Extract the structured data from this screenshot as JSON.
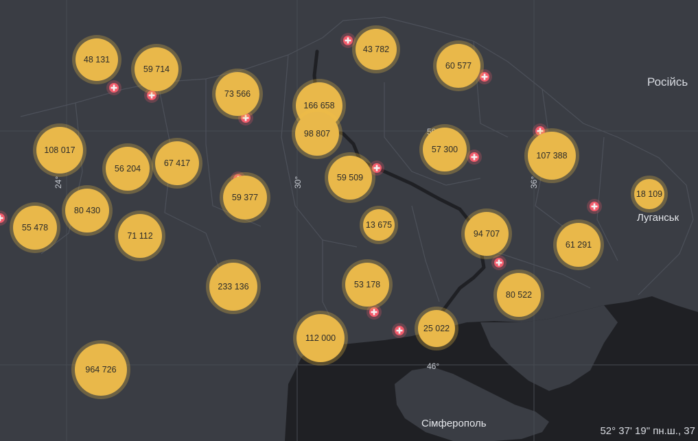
{
  "map": {
    "country_label": "Російсь",
    "cities": [
      {
        "id": "luhansk",
        "name": "Луганськ"
      },
      {
        "id": "simferopol",
        "name": "Сімферополь"
      }
    ],
    "degree_labels": [
      "24°",
      "30°",
      "36°",
      "50°",
      "46°"
    ],
    "coordinates_text": "52° 37' 19\" пн.ш., 37"
  },
  "clusters": [
    {
      "id": "c1",
      "value": "48 131"
    },
    {
      "id": "c2",
      "value": "59 714"
    },
    {
      "id": "c3",
      "value": "73 566"
    },
    {
      "id": "c4",
      "value": "166 658"
    },
    {
      "id": "c5",
      "value": "43 782"
    },
    {
      "id": "c6",
      "value": "60 577"
    },
    {
      "id": "c7",
      "value": "108 017"
    },
    {
      "id": "c8",
      "value": "56 204"
    },
    {
      "id": "c9",
      "value": "67 417"
    },
    {
      "id": "c10",
      "value": "98 807"
    },
    {
      "id": "c11",
      "value": "57 300"
    },
    {
      "id": "c12",
      "value": "107 388"
    },
    {
      "id": "c13",
      "value": "59 509"
    },
    {
      "id": "c14",
      "value": "59 377"
    },
    {
      "id": "c15",
      "value": "80 430"
    },
    {
      "id": "c16",
      "value": "18 109"
    },
    {
      "id": "c17",
      "value": "55 478"
    },
    {
      "id": "c18",
      "value": "13 675"
    },
    {
      "id": "c19",
      "value": "71 112"
    },
    {
      "id": "c20",
      "value": "94 707"
    },
    {
      "id": "c21",
      "value": "61 291"
    },
    {
      "id": "c22",
      "value": "233 136"
    },
    {
      "id": "c23",
      "value": "53 178"
    },
    {
      "id": "c24",
      "value": "80 522"
    },
    {
      "id": "c25",
      "value": "25 022"
    },
    {
      "id": "c26",
      "value": "112 000"
    },
    {
      "id": "c27",
      "value": "964 726"
    }
  ],
  "colors": {
    "bubble": "#e9b84a",
    "hospital_marker": "#f25a6a",
    "land": "#3a3d44",
    "sea": "#1f2024"
  },
  "marker_icon": "hospital-cross-icon"
}
